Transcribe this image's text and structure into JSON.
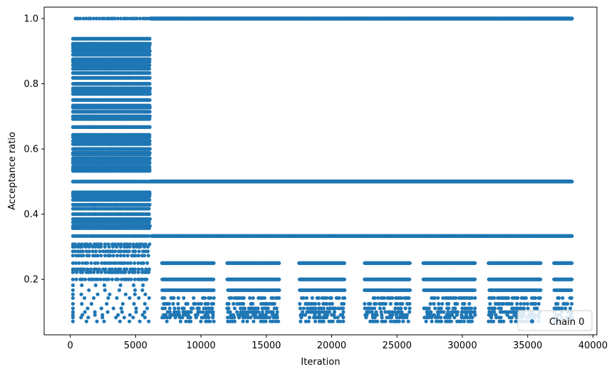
{
  "chart_data": {
    "type": "scatter",
    "title": "",
    "xlabel": "Iteration",
    "ylabel": "Acceptance ratio",
    "xlim": [
      -2000,
      40300
    ],
    "ylim": [
      0.03,
      1.035
    ],
    "x_ticks": [
      0,
      5000,
      10000,
      15000,
      20000,
      25000,
      30000,
      35000,
      40000
    ],
    "y_ticks": [
      0.2,
      0.4,
      0.6,
      0.8,
      1.0
    ],
    "x_tick_labels": [
      "0",
      "5000",
      "10000",
      "15000",
      "20000",
      "25000",
      "30000",
      "35000",
      "40000"
    ],
    "y_tick_labels": [
      "0.2",
      "0.4",
      "0.6",
      "0.8",
      "1.0"
    ],
    "grid": false,
    "legend": {
      "placement": "bottom-right",
      "entries": [
        "Chain 0"
      ]
    },
    "color": "#1f77b4",
    "series": [
      {
        "name": "Chain 0",
        "marker": "circle",
        "total_iterations": 38400,
        "phases": [
          {
            "x_range": [
              0,
              6100
            ],
            "values": [
              1.0,
              0.938,
              0.923,
              0.917,
              0.909,
              0.9,
              0.889,
              0.875,
              0.867,
              0.857,
              0.846,
              0.833,
              0.818,
              0.8,
              0.786,
              0.778,
              0.769,
              0.75,
              0.733,
              0.727,
              0.714,
              0.7,
              0.692,
              0.667,
              0.643,
              0.636,
              0.625,
              0.615,
              0.6,
              0.588,
              0.583,
              0.571,
              0.563,
              0.556,
              0.545,
              0.538,
              0.533,
              0.5,
              0.467,
              0.462,
              0.455,
              0.444,
              0.429,
              0.417,
              0.4,
              0.385,
              0.375,
              0.364,
              0.357,
              0.333,
              0.308,
              0.3,
              0.286,
              0.273,
              0.25,
              0.231,
              0.222,
              0.2,
              0.182,
              0.167,
              0.154,
              0.143,
              0.125,
              0.111,
              0.1,
              0.091,
              0.083,
              0.071
            ]
          },
          {
            "x_range": [
              6100,
              38400
            ],
            "values": [
              1.0,
              0.5,
              0.333,
              0.25,
              0.2,
              0.167,
              0.143,
              0.125,
              0.111,
              0.1,
              0.091,
              0.083,
              0.071
            ],
            "note_free_sparse_bands": [
              [
                7000,
                11000
              ],
              [
                12000,
                16000
              ],
              [
                17500,
                21000
              ],
              [
                22500,
                26000
              ],
              [
                27000,
                31000
              ],
              [
                32000,
                36000
              ],
              [
                37000,
                38400
              ]
            ]
          }
        ]
      }
    ]
  }
}
